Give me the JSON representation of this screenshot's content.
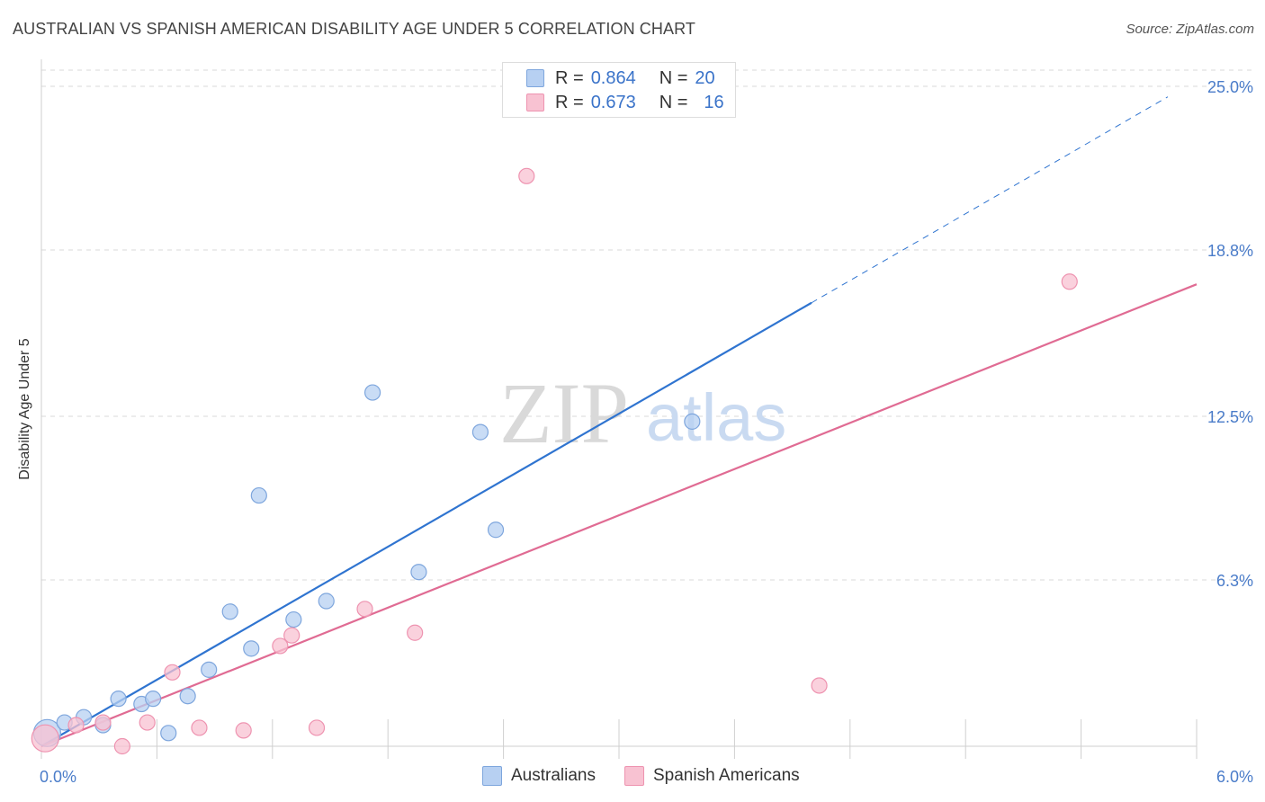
{
  "title": "AUSTRALIAN VS SPANISH AMERICAN DISABILITY AGE UNDER 5 CORRELATION CHART",
  "source": "Source: ZipAtlas.com",
  "watermark": {
    "zip": "ZIP",
    "atlas": "atlas"
  },
  "legend_top": [
    {
      "r_label": "R =",
      "r_value": "0.864",
      "n_label": "N =",
      "n_value": "20"
    },
    {
      "r_label": "R =",
      "r_value": "0.673",
      "n_label": "N =",
      "n_value": "16"
    }
  ],
  "colors": {
    "blue_fill": "#b7d0f2",
    "blue_stroke": "#7ea6dd",
    "blue_line": "#2f74d0",
    "pink_fill": "#f8c2d2",
    "pink_stroke": "#ee93b0",
    "pink_line": "#e06b93",
    "grid": "#d8d8d8",
    "tick_text": "#4a7cc9"
  },
  "chart_data": {
    "type": "scatter",
    "title": "AUSTRALIAN VS SPANISH AMERICAN DISABILITY AGE UNDER 5 CORRELATION CHART",
    "xlabel": "",
    "ylabel": "Disability Age Under 5",
    "xlim": [
      0,
      6.0
    ],
    "ylim": [
      0,
      25.0
    ],
    "x_tick_labels": [
      "0.0%",
      "6.0%"
    ],
    "y_ticks": [
      6.3,
      12.5,
      18.8,
      25.0
    ],
    "y_tick_labels": [
      "6.3%",
      "12.5%",
      "18.8%",
      "25.0%"
    ],
    "grid": true,
    "legend_position": "bottom",
    "series": [
      {
        "name": "Australians",
        "r": 0.864,
        "n": 20,
        "points": [
          {
            "x": 0.03,
            "y": 0.5,
            "big": true
          },
          {
            "x": 0.12,
            "y": 0.9
          },
          {
            "x": 0.22,
            "y": 1.1
          },
          {
            "x": 0.32,
            "y": 0.8
          },
          {
            "x": 0.4,
            "y": 1.8
          },
          {
            "x": 0.52,
            "y": 1.6
          },
          {
            "x": 0.58,
            "y": 1.8
          },
          {
            "x": 0.66,
            "y": 0.5
          },
          {
            "x": 0.76,
            "y": 1.9
          },
          {
            "x": 0.87,
            "y": 2.9
          },
          {
            "x": 0.98,
            "y": 5.1
          },
          {
            "x": 1.09,
            "y": 3.7
          },
          {
            "x": 1.13,
            "y": 9.5
          },
          {
            "x": 1.31,
            "y": 4.8
          },
          {
            "x": 1.48,
            "y": 5.5
          },
          {
            "x": 1.72,
            "y": 13.4
          },
          {
            "x": 1.96,
            "y": 6.6
          },
          {
            "x": 2.28,
            "y": 11.9
          },
          {
            "x": 2.36,
            "y": 8.2
          },
          {
            "x": 3.38,
            "y": 12.3
          }
        ],
        "trend": {
          "x_start": 0.0,
          "y_start": 0.0,
          "x_solid_end": 4.0,
          "y_solid_end": 16.8,
          "x_dash_end": 5.85,
          "y_dash_end": 24.6
        }
      },
      {
        "name": "Spanish Americans",
        "r": 0.673,
        "n": 16,
        "points": [
          {
            "x": 0.02,
            "y": 0.3,
            "big": true
          },
          {
            "x": 0.18,
            "y": 0.8
          },
          {
            "x": 0.32,
            "y": 0.9
          },
          {
            "x": 0.42,
            "y": 0.0
          },
          {
            "x": 0.55,
            "y": 0.9
          },
          {
            "x": 0.68,
            "y": 2.8
          },
          {
            "x": 0.82,
            "y": 0.7
          },
          {
            "x": 1.05,
            "y": 0.6
          },
          {
            "x": 1.24,
            "y": 3.8
          },
          {
            "x": 1.3,
            "y": 4.2
          },
          {
            "x": 1.43,
            "y": 0.7
          },
          {
            "x": 1.68,
            "y": 5.2
          },
          {
            "x": 1.94,
            "y": 4.3
          },
          {
            "x": 2.52,
            "y": 21.6
          },
          {
            "x": 4.04,
            "y": 2.3
          },
          {
            "x": 5.34,
            "y": 17.6
          }
        ],
        "trend": {
          "x_start": 0.0,
          "y_start": 0.0,
          "x_end": 6.0,
          "y_end": 17.5
        }
      }
    ]
  }
}
